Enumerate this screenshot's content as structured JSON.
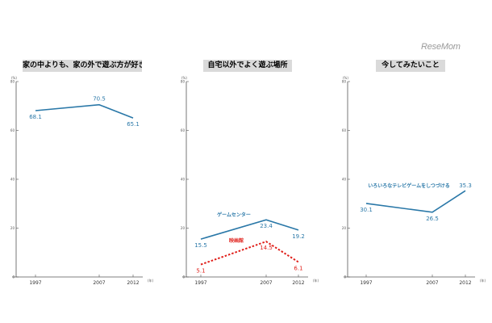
{
  "watermark": "ReseMom",
  "chart_data": [
    {
      "type": "line",
      "title": "家の中よりも、家の外で遊ぶ方が好きだ",
      "x": [
        "1997",
        "2007",
        "2012"
      ],
      "ylim": [
        0,
        80
      ],
      "y_ticks": [
        "0",
        "20",
        "40",
        "60",
        "80"
      ],
      "y_unit": "(%)",
      "x_unit": "(年)",
      "series": [
        {
          "name": "",
          "values": [
            68.1,
            70.5,
            65.1
          ],
          "labels": [
            "68.1",
            "70.5",
            "65.1"
          ],
          "color": "#2a78a8",
          "dashed": false
        }
      ]
    },
    {
      "type": "line",
      "title": "自宅以外でよく遊ぶ場所",
      "x": [
        "1997",
        "2007",
        "2012"
      ],
      "ylim": [
        0,
        80
      ],
      "y_ticks": [
        "0",
        "20",
        "40",
        "60",
        "80"
      ],
      "y_unit": "(%)",
      "x_unit": "(年)",
      "series": [
        {
          "name": "ゲームセンター",
          "values": [
            15.5,
            23.4,
            19.2
          ],
          "labels": [
            "15.5",
            "23.4",
            "19.2"
          ],
          "color": "#2a78a8",
          "dashed": false
        },
        {
          "name": "映画館",
          "values": [
            5.1,
            14.5,
            6.1
          ],
          "labels": [
            "5.1",
            "14.5",
            "6.1"
          ],
          "color": "#e0201b",
          "dashed": true
        }
      ]
    },
    {
      "type": "line",
      "title": "今してみたいこと",
      "x": [
        "1997",
        "2007",
        "2012"
      ],
      "ylim": [
        0,
        80
      ],
      "y_ticks": [
        "0",
        "20",
        "40",
        "60",
        "80"
      ],
      "y_unit": "(%)",
      "x_unit": "(年)",
      "series": [
        {
          "name": "いろいろなテレビゲームをしつづける",
          "values": [
            30.1,
            26.5,
            35.3
          ],
          "labels": [
            "30.1",
            "26.5",
            "35.3"
          ],
          "color": "#2a78a8",
          "dashed": false
        }
      ]
    }
  ]
}
